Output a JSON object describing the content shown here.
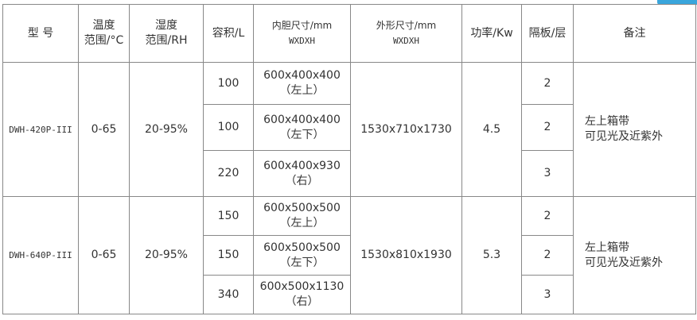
{
  "accent_color": "#3aa6dc",
  "headers": [
    {
      "line1": "型 号"
    },
    {
      "line1": "温度",
      "line2": "范围/°C"
    },
    {
      "line1": "湿度",
      "line2": "范围/RH"
    },
    {
      "line1": "容积/L"
    },
    {
      "line1": "内胆尺寸/mm",
      "line2": "WXDXH"
    },
    {
      "line1": "外形尺寸/mm",
      "line2": "WXDXH"
    },
    {
      "line1": "功率/Kw"
    },
    {
      "line1": "隔板/层"
    },
    {
      "line1": "备注"
    }
  ],
  "models": [
    {
      "model": "DWH-420P-III",
      "temp": "0-65",
      "humidity": "20-95%",
      "outer": "1530x710x1730",
      "power": "4.5",
      "note1": "左上箱带",
      "note2": "可见光及近紫外",
      "chambers": [
        {
          "volume": "100",
          "inner": "600x400x400",
          "pos": "（左上）",
          "shelves": "2"
        },
        {
          "volume": "100",
          "inner": "600x400x400",
          "pos": "（左下）",
          "shelves": "2"
        },
        {
          "volume": "220",
          "inner": "600x400x930",
          "pos": "（右）",
          "shelves": "3"
        }
      ]
    },
    {
      "model": "DWH-640P-III",
      "temp": "0-65",
      "humidity": "20-95%",
      "outer": "1530x810x1930",
      "power": "5.3",
      "note1": "左上箱带",
      "note2": "可见光及近紫外",
      "chambers": [
        {
          "volume": "150",
          "inner": "600x500x500",
          "pos": "（左上）",
          "shelves": "2"
        },
        {
          "volume": "150",
          "inner": "600x500x500",
          "pos": "（左下）",
          "shelves": "2"
        },
        {
          "volume": "340",
          "inner": "600x500x1130",
          "pos": "（右）",
          "shelves": "3"
        }
      ]
    }
  ]
}
